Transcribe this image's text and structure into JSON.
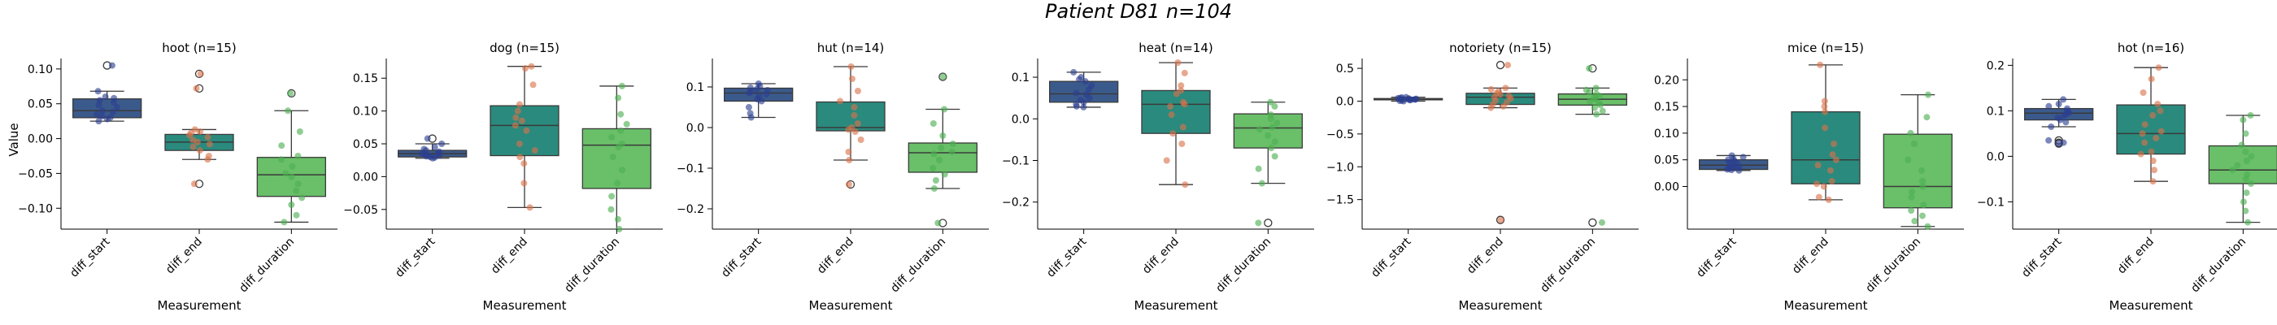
{
  "figure": {
    "title": "Patient D81 n=104",
    "xlabel": "Measurement",
    "ylabel": "Value"
  },
  "colors": {
    "diff_start": "#3b5a8c",
    "diff_end": "#2a8a7e",
    "diff_duration": "#6abf69",
    "scatter_start": "#2c3f8f",
    "scatter_end": "#d9734a",
    "scatter_duration": "#4caf50"
  },
  "chart_data": [
    {
      "type": "box",
      "title": "hoot (n=15)",
      "categories": [
        "diff_start",
        "diff_end",
        "diff_duration"
      ],
      "yticks": [
        -0.1,
        -0.05,
        0.0,
        0.05,
        0.1
      ],
      "ylim": [
        -0.13,
        0.115
      ],
      "boxes": [
        {
          "name": "diff_start",
          "q1": 0.03,
          "median": 0.04,
          "q3": 0.057,
          "whisker_low": 0.025,
          "whisker_high": 0.068,
          "outliers": [
            0.105
          ],
          "points": [
            0.105,
            0.068,
            0.06,
            0.058,
            0.055,
            0.052,
            0.048,
            0.045,
            0.04,
            0.038,
            0.035,
            0.032,
            0.03,
            0.028,
            0.025
          ]
        },
        {
          "name": "diff_end",
          "q1": -0.017,
          "median": -0.005,
          "q3": 0.006,
          "whisker_low": -0.03,
          "whisker_high": 0.013,
          "outliers": [
            0.093,
            0.072,
            -0.065
          ],
          "points": [
            0.093,
            0.072,
            0.013,
            0.01,
            0.008,
            0.005,
            0.002,
            -0.002,
            -0.005,
            -0.008,
            -0.012,
            -0.017,
            -0.025,
            -0.03,
            -0.065
          ]
        },
        {
          "name": "diff_duration",
          "q1": -0.083,
          "median": -0.052,
          "q3": -0.027,
          "whisker_low": -0.12,
          "whisker_high": 0.04,
          "outliers": [
            0.065
          ],
          "points": [
            0.065,
            0.04,
            0.01,
            -0.01,
            -0.025,
            -0.03,
            -0.04,
            -0.05,
            -0.055,
            -0.065,
            -0.075,
            -0.085,
            -0.095,
            -0.11,
            -0.12
          ]
        }
      ]
    },
    {
      "type": "box",
      "title": "dog (n=15)",
      "categories": [
        "diff_start",
        "diff_end",
        "diff_duration"
      ],
      "yticks": [
        -0.05,
        0.0,
        0.05,
        0.1,
        0.15
      ],
      "ylim": [
        -0.08,
        0.18
      ],
      "boxes": [
        {
          "name": "diff_start",
          "q1": 0.03,
          "median": 0.035,
          "q3": 0.04,
          "whisker_low": 0.028,
          "whisker_high": 0.05,
          "outliers": [
            0.058
          ],
          "points": [
            0.058,
            0.05,
            0.045,
            0.042,
            0.04,
            0.038,
            0.036,
            0.035,
            0.034,
            0.033,
            0.032,
            0.031,
            0.03,
            0.029,
            0.028
          ]
        },
        {
          "name": "diff_end",
          "q1": 0.032,
          "median": 0.078,
          "q3": 0.108,
          "whisker_low": -0.047,
          "whisker_high": 0.168,
          "outliers": [],
          "points": [
            0.168,
            0.165,
            0.14,
            0.11,
            0.1,
            0.09,
            0.085,
            0.078,
            0.07,
            0.05,
            0.04,
            0.03,
            0.02,
            -0.01,
            -0.047
          ]
        },
        {
          "name": "diff_duration",
          "q1": -0.018,
          "median": 0.048,
          "q3": 0.073,
          "whisker_low": -0.08,
          "whisker_high": 0.138,
          "outliers": [],
          "points": [
            0.138,
            0.12,
            0.095,
            0.08,
            0.07,
            0.06,
            0.05,
            0.045,
            0.03,
            0.01,
            -0.01,
            -0.03,
            -0.05,
            -0.065,
            -0.08
          ]
        }
      ]
    },
    {
      "type": "box",
      "title": "hut (n=14)",
      "categories": [
        "diff_start",
        "diff_end",
        "diff_duration"
      ],
      "yticks": [
        -0.2,
        -0.1,
        0.0,
        0.1
      ],
      "ylim": [
        -0.25,
        0.17
      ],
      "boxes": [
        {
          "name": "diff_start",
          "q1": 0.065,
          "median": 0.085,
          "q3": 0.097,
          "whisker_low": 0.025,
          "whisker_high": 0.108,
          "outliers": [],
          "points": [
            0.108,
            0.102,
            0.098,
            0.095,
            0.092,
            0.088,
            0.085,
            0.082,
            0.078,
            0.07,
            0.065,
            0.05,
            0.035,
            0.025
          ]
        },
        {
          "name": "diff_end",
          "q1": -0.008,
          "median": 0.0,
          "q3": 0.063,
          "whisker_low": -0.08,
          "whisker_high": 0.15,
          "outliers": [
            -0.14
          ],
          "points": [
            0.15,
            0.12,
            0.09,
            0.065,
            0.05,
            0.03,
            0.01,
            0.0,
            -0.005,
            -0.01,
            -0.03,
            -0.06,
            -0.08,
            -0.14
          ]
        },
        {
          "name": "diff_duration",
          "q1": -0.11,
          "median": -0.062,
          "q3": -0.038,
          "whisker_low": -0.15,
          "whisker_high": 0.045,
          "outliers": [
            0.125,
            -0.235
          ],
          "points": [
            0.125,
            0.045,
            0.01,
            -0.02,
            -0.04,
            -0.05,
            -0.06,
            -0.065,
            -0.08,
            -0.1,
            -0.115,
            -0.13,
            -0.15,
            -0.235
          ]
        }
      ]
    },
    {
      "type": "box",
      "title": "heat (n=14)",
      "categories": [
        "diff_start",
        "diff_end",
        "diff_duration"
      ],
      "yticks": [
        -0.2,
        -0.1,
        0.0,
        0.1
      ],
      "ylim": [
        -0.265,
        0.145
      ],
      "boxes": [
        {
          "name": "diff_start",
          "q1": 0.04,
          "median": 0.06,
          "q3": 0.09,
          "whisker_low": 0.028,
          "whisker_high": 0.112,
          "outliers": [],
          "points": [
            0.112,
            0.1,
            0.095,
            0.09,
            0.08,
            0.07,
            0.062,
            0.058,
            0.05,
            0.045,
            0.04,
            0.035,
            0.03,
            0.028
          ]
        },
        {
          "name": "diff_end",
          "q1": -0.035,
          "median": 0.035,
          "q3": 0.068,
          "whisker_low": -0.158,
          "whisker_high": 0.135,
          "outliers": [],
          "points": [
            0.135,
            0.11,
            0.08,
            0.068,
            0.06,
            0.04,
            0.035,
            0.03,
            0.01,
            -0.02,
            -0.035,
            -0.06,
            -0.1,
            -0.158
          ]
        },
        {
          "name": "diff_duration",
          "q1": -0.07,
          "median": -0.022,
          "q3": 0.012,
          "whisker_low": -0.155,
          "whisker_high": 0.04,
          "outliers": [
            -0.25
          ],
          "points": [
            0.04,
            0.03,
            0.01,
            0.0,
            -0.01,
            -0.02,
            -0.025,
            -0.04,
            -0.055,
            -0.07,
            -0.09,
            -0.12,
            -0.155,
            -0.25
          ]
        }
      ]
    },
    {
      "type": "box",
      "title": "notoriety (n=15)",
      "categories": [
        "diff_start",
        "diff_end",
        "diff_duration"
      ],
      "yticks": [
        -1.5,
        -1.0,
        -0.5,
        0.0,
        0.5
      ],
      "ylim": [
        -1.95,
        0.65
      ],
      "boxes": [
        {
          "name": "diff_start",
          "q1": 0.02,
          "median": 0.03,
          "q3": 0.04,
          "whisker_low": 0.0,
          "whisker_high": 0.06,
          "outliers": [],
          "points": [
            0.06,
            0.055,
            0.05,
            0.045,
            0.04,
            0.035,
            0.032,
            0.03,
            0.028,
            0.025,
            0.02,
            0.015,
            0.01,
            0.005,
            0.0
          ]
        },
        {
          "name": "diff_end",
          "q1": -0.05,
          "median": 0.06,
          "q3": 0.12,
          "whisker_low": -0.1,
          "whisker_high": 0.2,
          "outliers": [
            0.55,
            -1.81
          ],
          "points": [
            0.55,
            0.2,
            0.18,
            0.15,
            0.12,
            0.1,
            0.08,
            0.06,
            0.04,
            0.01,
            -0.02,
            -0.05,
            -0.08,
            -0.1,
            -1.81
          ]
        },
        {
          "name": "diff_duration",
          "q1": -0.06,
          "median": 0.03,
          "q3": 0.11,
          "whisker_low": -0.2,
          "whisker_high": 0.2,
          "outliers": [
            0.5,
            -1.85
          ],
          "points": [
            0.5,
            0.2,
            0.17,
            0.14,
            0.11,
            0.08,
            0.05,
            0.03,
            0.0,
            -0.03,
            -0.06,
            -0.1,
            -0.15,
            -0.2,
            -1.85
          ]
        }
      ]
    },
    {
      "type": "box",
      "title": "mice (n=15)",
      "categories": [
        "diff_start",
        "diff_end",
        "diff_duration"
      ],
      "yticks": [
        0.0,
        0.05,
        0.1,
        0.15,
        0.2
      ],
      "ylim": [
        -0.08,
        0.24
      ],
      "boxes": [
        {
          "name": "diff_start",
          "q1": 0.032,
          "median": 0.04,
          "q3": 0.05,
          "whisker_low": 0.03,
          "whisker_high": 0.058,
          "outliers": [],
          "points": [
            0.058,
            0.055,
            0.052,
            0.05,
            0.048,
            0.045,
            0.042,
            0.04,
            0.038,
            0.036,
            0.035,
            0.034,
            0.032,
            0.031,
            0.03
          ]
        },
        {
          "name": "diff_end",
          "q1": 0.005,
          "median": 0.05,
          "q3": 0.14,
          "whisker_low": -0.025,
          "whisker_high": 0.228,
          "outliers": [],
          "points": [
            0.228,
            0.16,
            0.15,
            0.14,
            0.11,
            0.08,
            0.06,
            0.05,
            0.04,
            0.03,
            0.01,
            0.005,
            0.0,
            -0.02,
            -0.025
          ]
        },
        {
          "name": "diff_duration",
          "q1": -0.04,
          "median": 0.0,
          "q3": 0.098,
          "whisker_low": -0.075,
          "whisker_high": 0.172,
          "outliers": [],
          "points": [
            0.172,
            0.13,
            0.1,
            0.08,
            0.05,
            0.03,
            0.01,
            0.0,
            -0.01,
            -0.02,
            -0.035,
            -0.045,
            -0.055,
            -0.065,
            -0.075
          ]
        }
      ]
    },
    {
      "type": "box",
      "title": "hot (n=16)",
      "categories": [
        "diff_start",
        "diff_end",
        "diff_duration"
      ],
      "yticks": [
        -0.1,
        0.0,
        0.1,
        0.2
      ],
      "ylim": [
        -0.16,
        0.215
      ],
      "boxes": [
        {
          "name": "diff_start",
          "q1": 0.08,
          "median": 0.095,
          "q3": 0.105,
          "whisker_low": 0.065,
          "whisker_high": 0.125,
          "outliers": [
            0.035,
            0.03,
            0.028
          ],
          "points": [
            0.125,
            0.115,
            0.11,
            0.105,
            0.1,
            0.098,
            0.095,
            0.092,
            0.09,
            0.085,
            0.08,
            0.075,
            0.065,
            0.035,
            0.03,
            0.028
          ]
        },
        {
          "name": "diff_end",
          "q1": 0.005,
          "median": 0.05,
          "q3": 0.113,
          "whisker_low": -0.055,
          "whisker_high": 0.195,
          "outliers": [],
          "points": [
            0.195,
            0.17,
            0.14,
            0.115,
            0.1,
            0.09,
            0.07,
            0.055,
            0.05,
            0.04,
            0.03,
            0.01,
            0.005,
            -0.01,
            -0.03,
            -0.055
          ]
        },
        {
          "name": "diff_duration",
          "q1": -0.06,
          "median": -0.03,
          "q3": 0.023,
          "whisker_low": -0.145,
          "whisker_high": 0.09,
          "outliers": [],
          "points": [
            0.09,
            0.08,
            0.05,
            0.025,
            0.01,
            0.0,
            -0.01,
            -0.02,
            -0.03,
            -0.04,
            -0.05,
            -0.06,
            -0.08,
            -0.1,
            -0.12,
            -0.145
          ]
        }
      ]
    }
  ]
}
